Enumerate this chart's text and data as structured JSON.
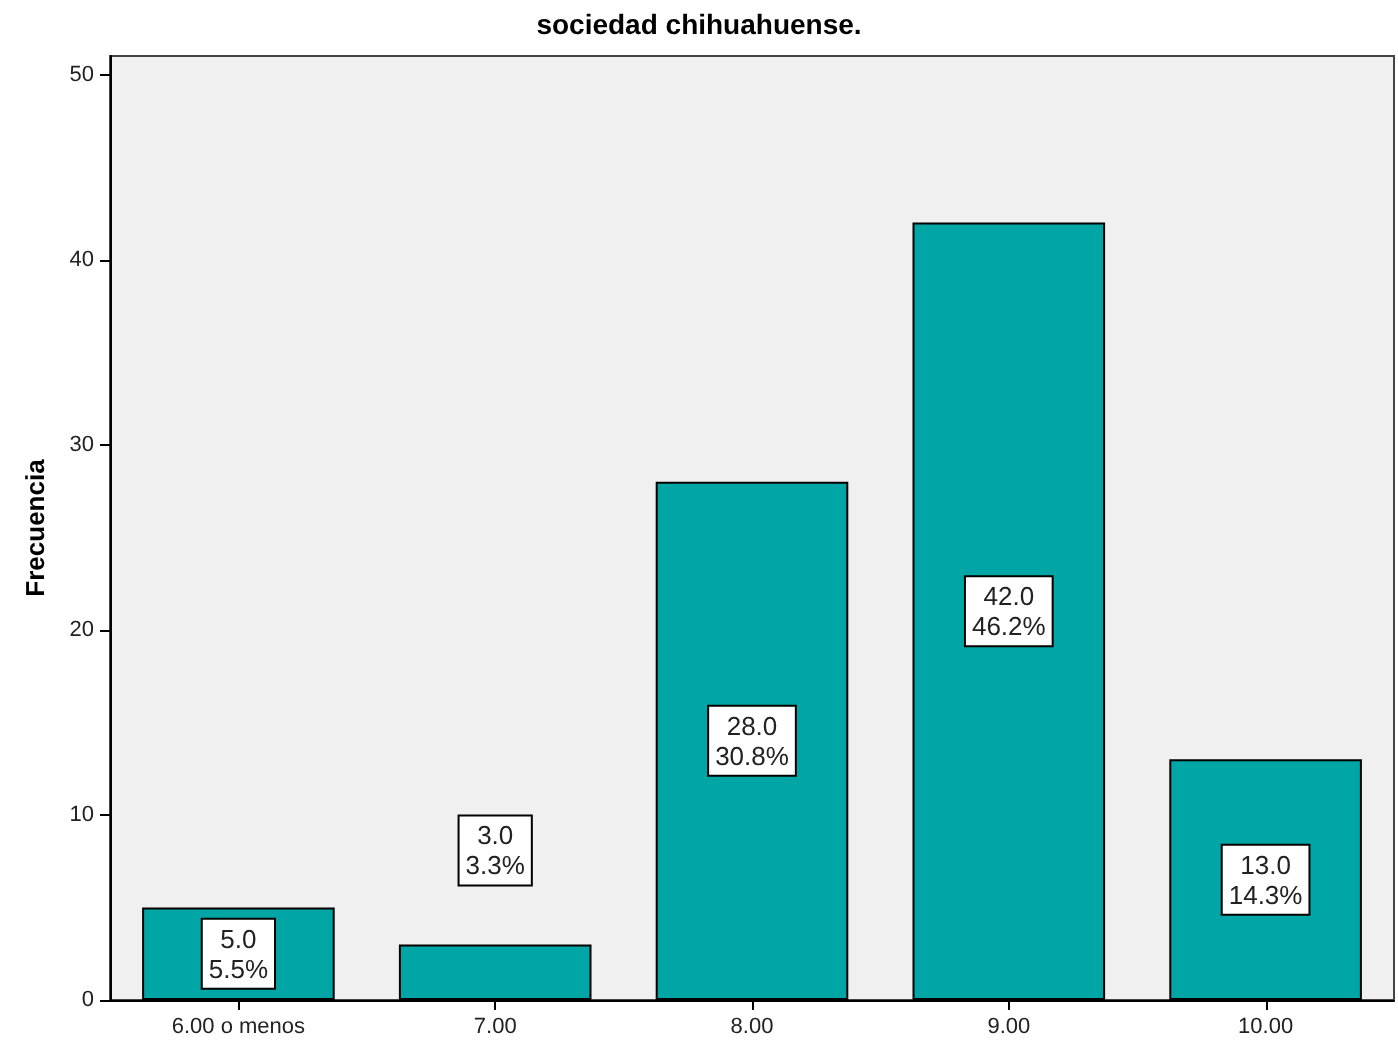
{
  "chart_data": {
    "type": "bar",
    "title": "sociedad chihuahuense.",
    "ylabel": "Frecuencia",
    "categories": [
      "6.00 o menos",
      "7.00",
      "8.00",
      "9.00",
      "10.00"
    ],
    "values": [
      5,
      3,
      28,
      42,
      13
    ],
    "color": "#00a5a5",
    "value_labels": [
      "5.0\n5.5%",
      "3.0\n3.3%",
      "28.0\n30.8%",
      "42.0\n46.2%",
      "13.0\n14.3%"
    ],
    "ylim": [
      0,
      51
    ],
    "yticks": [
      0,
      10,
      20,
      30,
      40,
      50
    ],
    "grid": false
  }
}
